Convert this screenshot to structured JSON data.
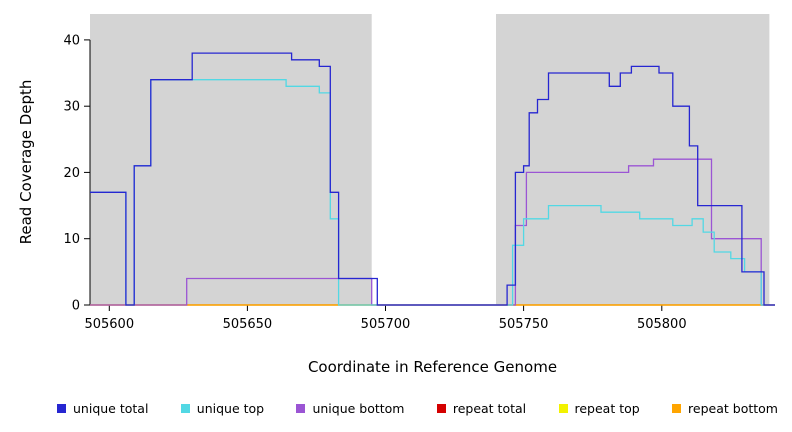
{
  "chart_data": {
    "type": "line",
    "subtype": "step",
    "title": "",
    "xlabel": "Coordinate in Reference Genome",
    "ylabel": "Read Coverage Depth",
    "xlim": [
      505593,
      505841
    ],
    "ylim": [
      0,
      43
    ],
    "xticks": [
      505600,
      505650,
      505700,
      505750,
      505800
    ],
    "yticks": [
      0,
      10,
      20,
      30,
      40
    ],
    "grid": false,
    "legend_position": "bottom",
    "plot_background": "#ffffff",
    "shaded_regions": [
      {
        "x0": 505593,
        "x1": 505695,
        "color": "#d4d4d4"
      },
      {
        "x0": 505740,
        "x1": 505839,
        "color": "#d4d4d4"
      }
    ],
    "draw_order": [
      3,
      4,
      5,
      2,
      1,
      0
    ],
    "series": [
      {
        "name": "unique total",
        "color": "#2626d1",
        "points": [
          [
            505593,
            17
          ],
          [
            505606,
            0
          ],
          [
            505609,
            21
          ],
          [
            505615,
            34
          ],
          [
            505630,
            38
          ],
          [
            505666,
            37
          ],
          [
            505676,
            36
          ],
          [
            505680,
            17
          ],
          [
            505683,
            4
          ],
          [
            505697,
            0
          ],
          [
            505744,
            3
          ],
          [
            505747,
            20
          ],
          [
            505750,
            21
          ],
          [
            505752,
            29
          ],
          [
            505755,
            31
          ],
          [
            505759,
            35
          ],
          [
            505781,
            33
          ],
          [
            505785,
            35
          ],
          [
            505789,
            36
          ],
          [
            505799,
            35
          ],
          [
            505804,
            30
          ],
          [
            505810,
            24
          ],
          [
            505813,
            15
          ],
          [
            505829,
            5
          ],
          [
            505837,
            0
          ]
        ]
      },
      {
        "name": "unique top",
        "color": "#52d8e4",
        "points": [
          [
            505593,
            17
          ],
          [
            505606,
            0
          ],
          [
            505609,
            21
          ],
          [
            505615,
            34
          ],
          [
            505664,
            33
          ],
          [
            505676,
            32
          ],
          [
            505680,
            13
          ],
          [
            505683,
            0
          ],
          [
            505746,
            9
          ],
          [
            505750,
            13
          ],
          [
            505759,
            15
          ],
          [
            505778,
            14
          ],
          [
            505792,
            13
          ],
          [
            505804,
            12
          ],
          [
            505811,
            13
          ],
          [
            505815,
            11
          ],
          [
            505819,
            8
          ],
          [
            505825,
            7
          ],
          [
            505830,
            5
          ],
          [
            505836,
            0
          ]
        ]
      },
      {
        "name": "unique bottom",
        "color": "#9b55d4",
        "points": [
          [
            505593,
            0
          ],
          [
            505628,
            4
          ],
          [
            505695,
            0
          ],
          [
            505747,
            12
          ],
          [
            505751,
            20
          ],
          [
            505788,
            21
          ],
          [
            505797,
            22
          ],
          [
            505818,
            10
          ],
          [
            505836,
            0
          ]
        ]
      },
      {
        "name": "repeat total",
        "color": "#d40000",
        "points": [
          [
            505593,
            0
          ]
        ]
      },
      {
        "name": "repeat top",
        "color": "#f2f200",
        "points": [
          [
            505593,
            0
          ]
        ]
      },
      {
        "name": "repeat bottom",
        "color": "#ffa500",
        "points": [
          [
            505593,
            0
          ]
        ]
      }
    ]
  }
}
